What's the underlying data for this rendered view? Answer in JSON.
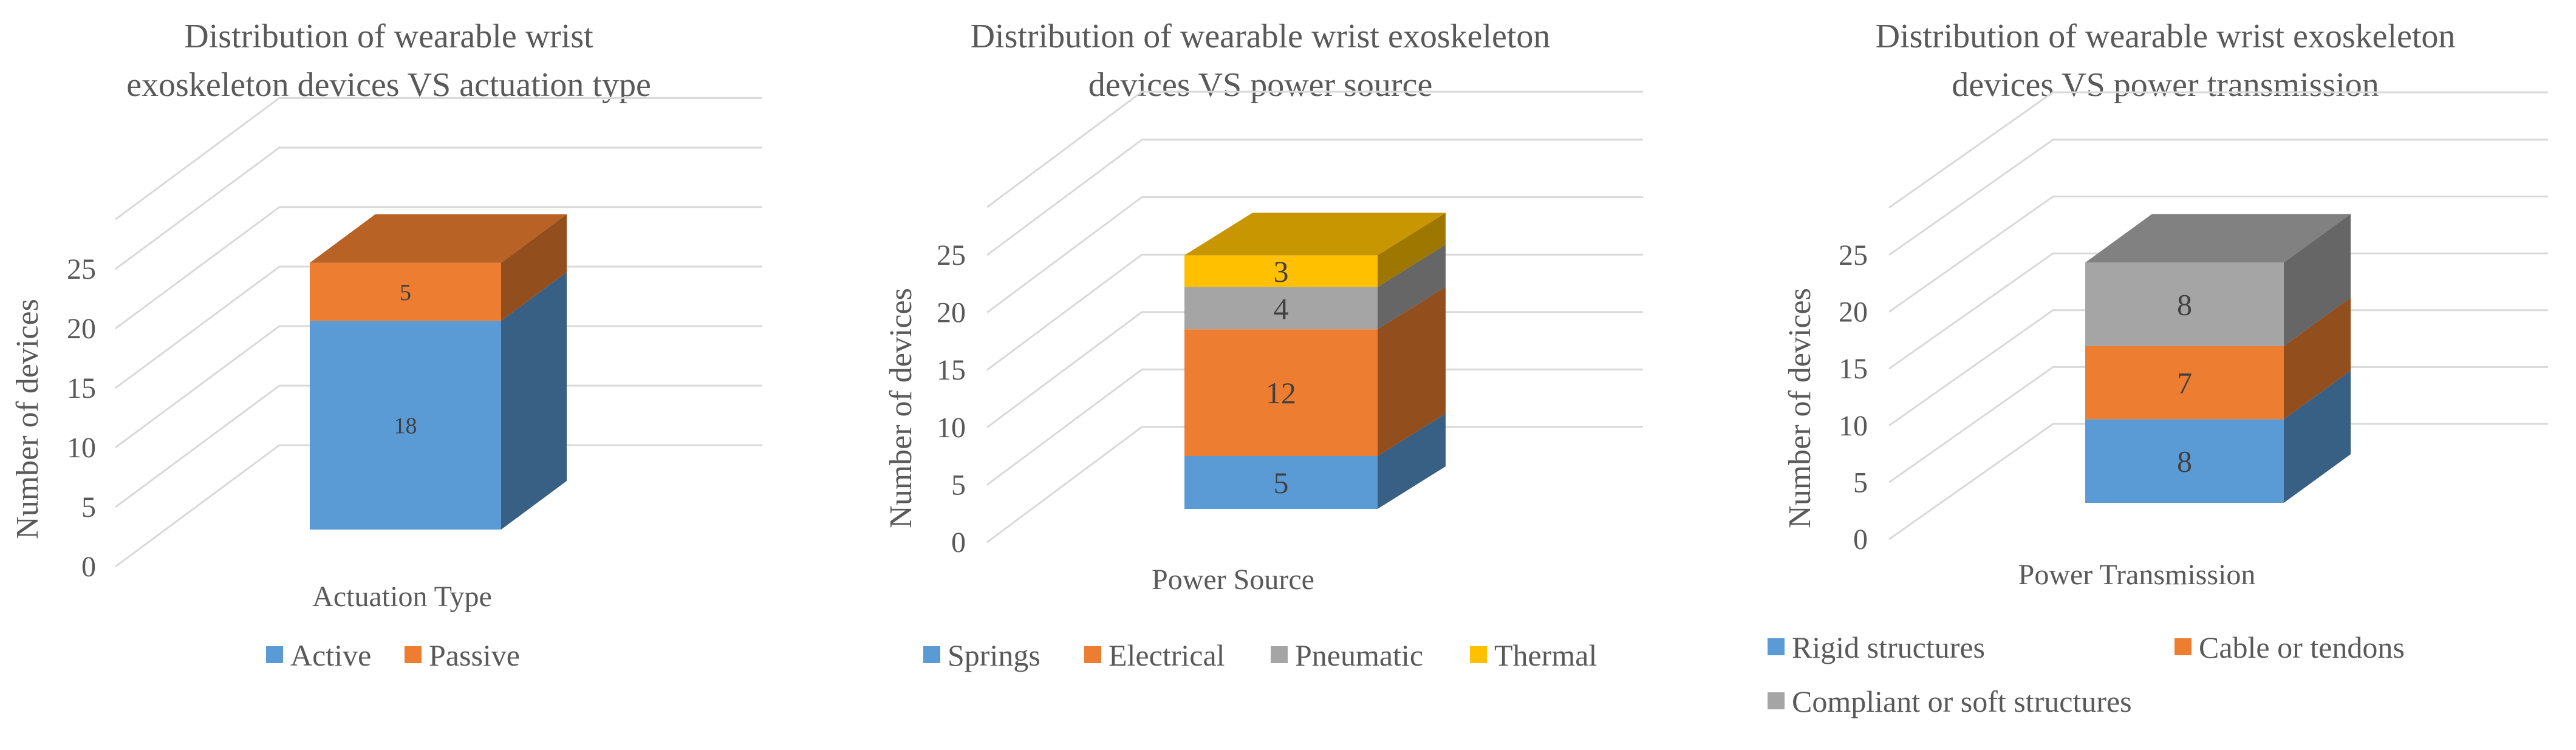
{
  "chart_data": [
    {
      "type": "bar",
      "title": "Distribution of wearable wrist exoskeleton devices VS actuation type",
      "title_lines": [
        "Distribution of wearable wrist",
        "exoskeleton devices VS actuation type"
      ],
      "xlabel": "Actuation Type",
      "ylabel": "Number of devices",
      "ylim": [
        0,
        25
      ],
      "yticks": [
        0,
        5,
        10,
        15,
        20,
        25
      ],
      "stacked": true,
      "three_d": true,
      "grid": true,
      "legend_position": "bottom",
      "series": [
        {
          "name": "Active",
          "values": [
            18
          ],
          "color": "#5B9BD5"
        },
        {
          "name": "Passive",
          "values": [
            5
          ],
          "color": "#ED7D31"
        }
      ]
    },
    {
      "type": "bar",
      "title": "Distribution of wearable wrist exoskeleton devices VS power source",
      "title_lines": [
        "Distribution of wearable wrist exoskeleton",
        "devices VS power source"
      ],
      "xlabel": "Power Source",
      "ylabel": "Number of devices",
      "ylim": [
        0,
        25
      ],
      "yticks": [
        0,
        5,
        10,
        15,
        20,
        25
      ],
      "stacked": true,
      "three_d": true,
      "grid": true,
      "legend_position": "bottom",
      "series": [
        {
          "name": "Springs",
          "values": [
            5
          ],
          "color": "#5B9BD5"
        },
        {
          "name": "Electrical",
          "values": [
            12
          ],
          "color": "#ED7D31"
        },
        {
          "name": "Pneumatic",
          "values": [
            4
          ],
          "color": "#A5A5A5"
        },
        {
          "name": "Thermal",
          "values": [
            3
          ],
          "color": "#FFC000"
        }
      ]
    },
    {
      "type": "bar",
      "title": "Distribution of wearable wrist exoskeleton devices VS power transmission",
      "title_lines": [
        "Distribution of wearable wrist exoskeleton",
        "devices VS power transmission"
      ],
      "xlabel": "Power Transmission",
      "ylabel": "Number of devices",
      "ylim": [
        0,
        25
      ],
      "yticks": [
        0,
        5,
        10,
        15,
        20,
        25
      ],
      "stacked": true,
      "three_d": true,
      "grid": true,
      "legend_position": "bottom",
      "series": [
        {
          "name": "Rigid structures",
          "values": [
            8
          ],
          "color": "#5B9BD5"
        },
        {
          "name": "Cable or tendons",
          "values": [
            7
          ],
          "color": "#ED7D31"
        },
        {
          "name": "Compliant or soft structures",
          "values": [
            8
          ],
          "color": "#A5A5A5"
        }
      ]
    }
  ]
}
